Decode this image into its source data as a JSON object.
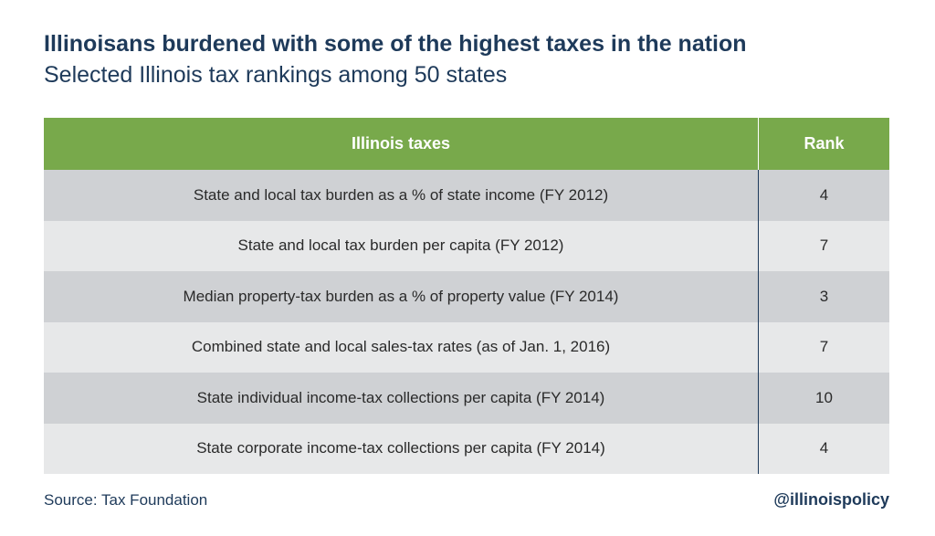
{
  "title": "Illinoisans burdened with some of the highest taxes in the nation",
  "subtitle": "Selected Illinois tax rankings among 50 states",
  "source": "Source: Tax Foundation",
  "handle": "@illinoispolicy",
  "colors": {
    "header_bg": "#78a94b",
    "title_text": "#1e3a5a",
    "row_light": "#e7e8e9",
    "row_dark": "#cfd1d4"
  },
  "chart_data": {
    "type": "table",
    "columns": [
      "Illinois taxes",
      "Rank"
    ],
    "rows": [
      {
        "label": "State and local tax burden as a % of state income (FY 2012)",
        "rank": "4"
      },
      {
        "label": "State and local tax burden per capita (FY 2012)",
        "rank": "7"
      },
      {
        "label": "Median property-tax burden as a % of property value (FY 2014)",
        "rank": "3"
      },
      {
        "label": "Combined state and local sales-tax rates (as of Jan. 1, 2016)",
        "rank": "7"
      },
      {
        "label": "State individual income-tax collections per capita (FY 2014)",
        "rank": "10"
      },
      {
        "label": "State corporate income-tax collections per capita (FY 2014)",
        "rank": "4"
      }
    ]
  }
}
